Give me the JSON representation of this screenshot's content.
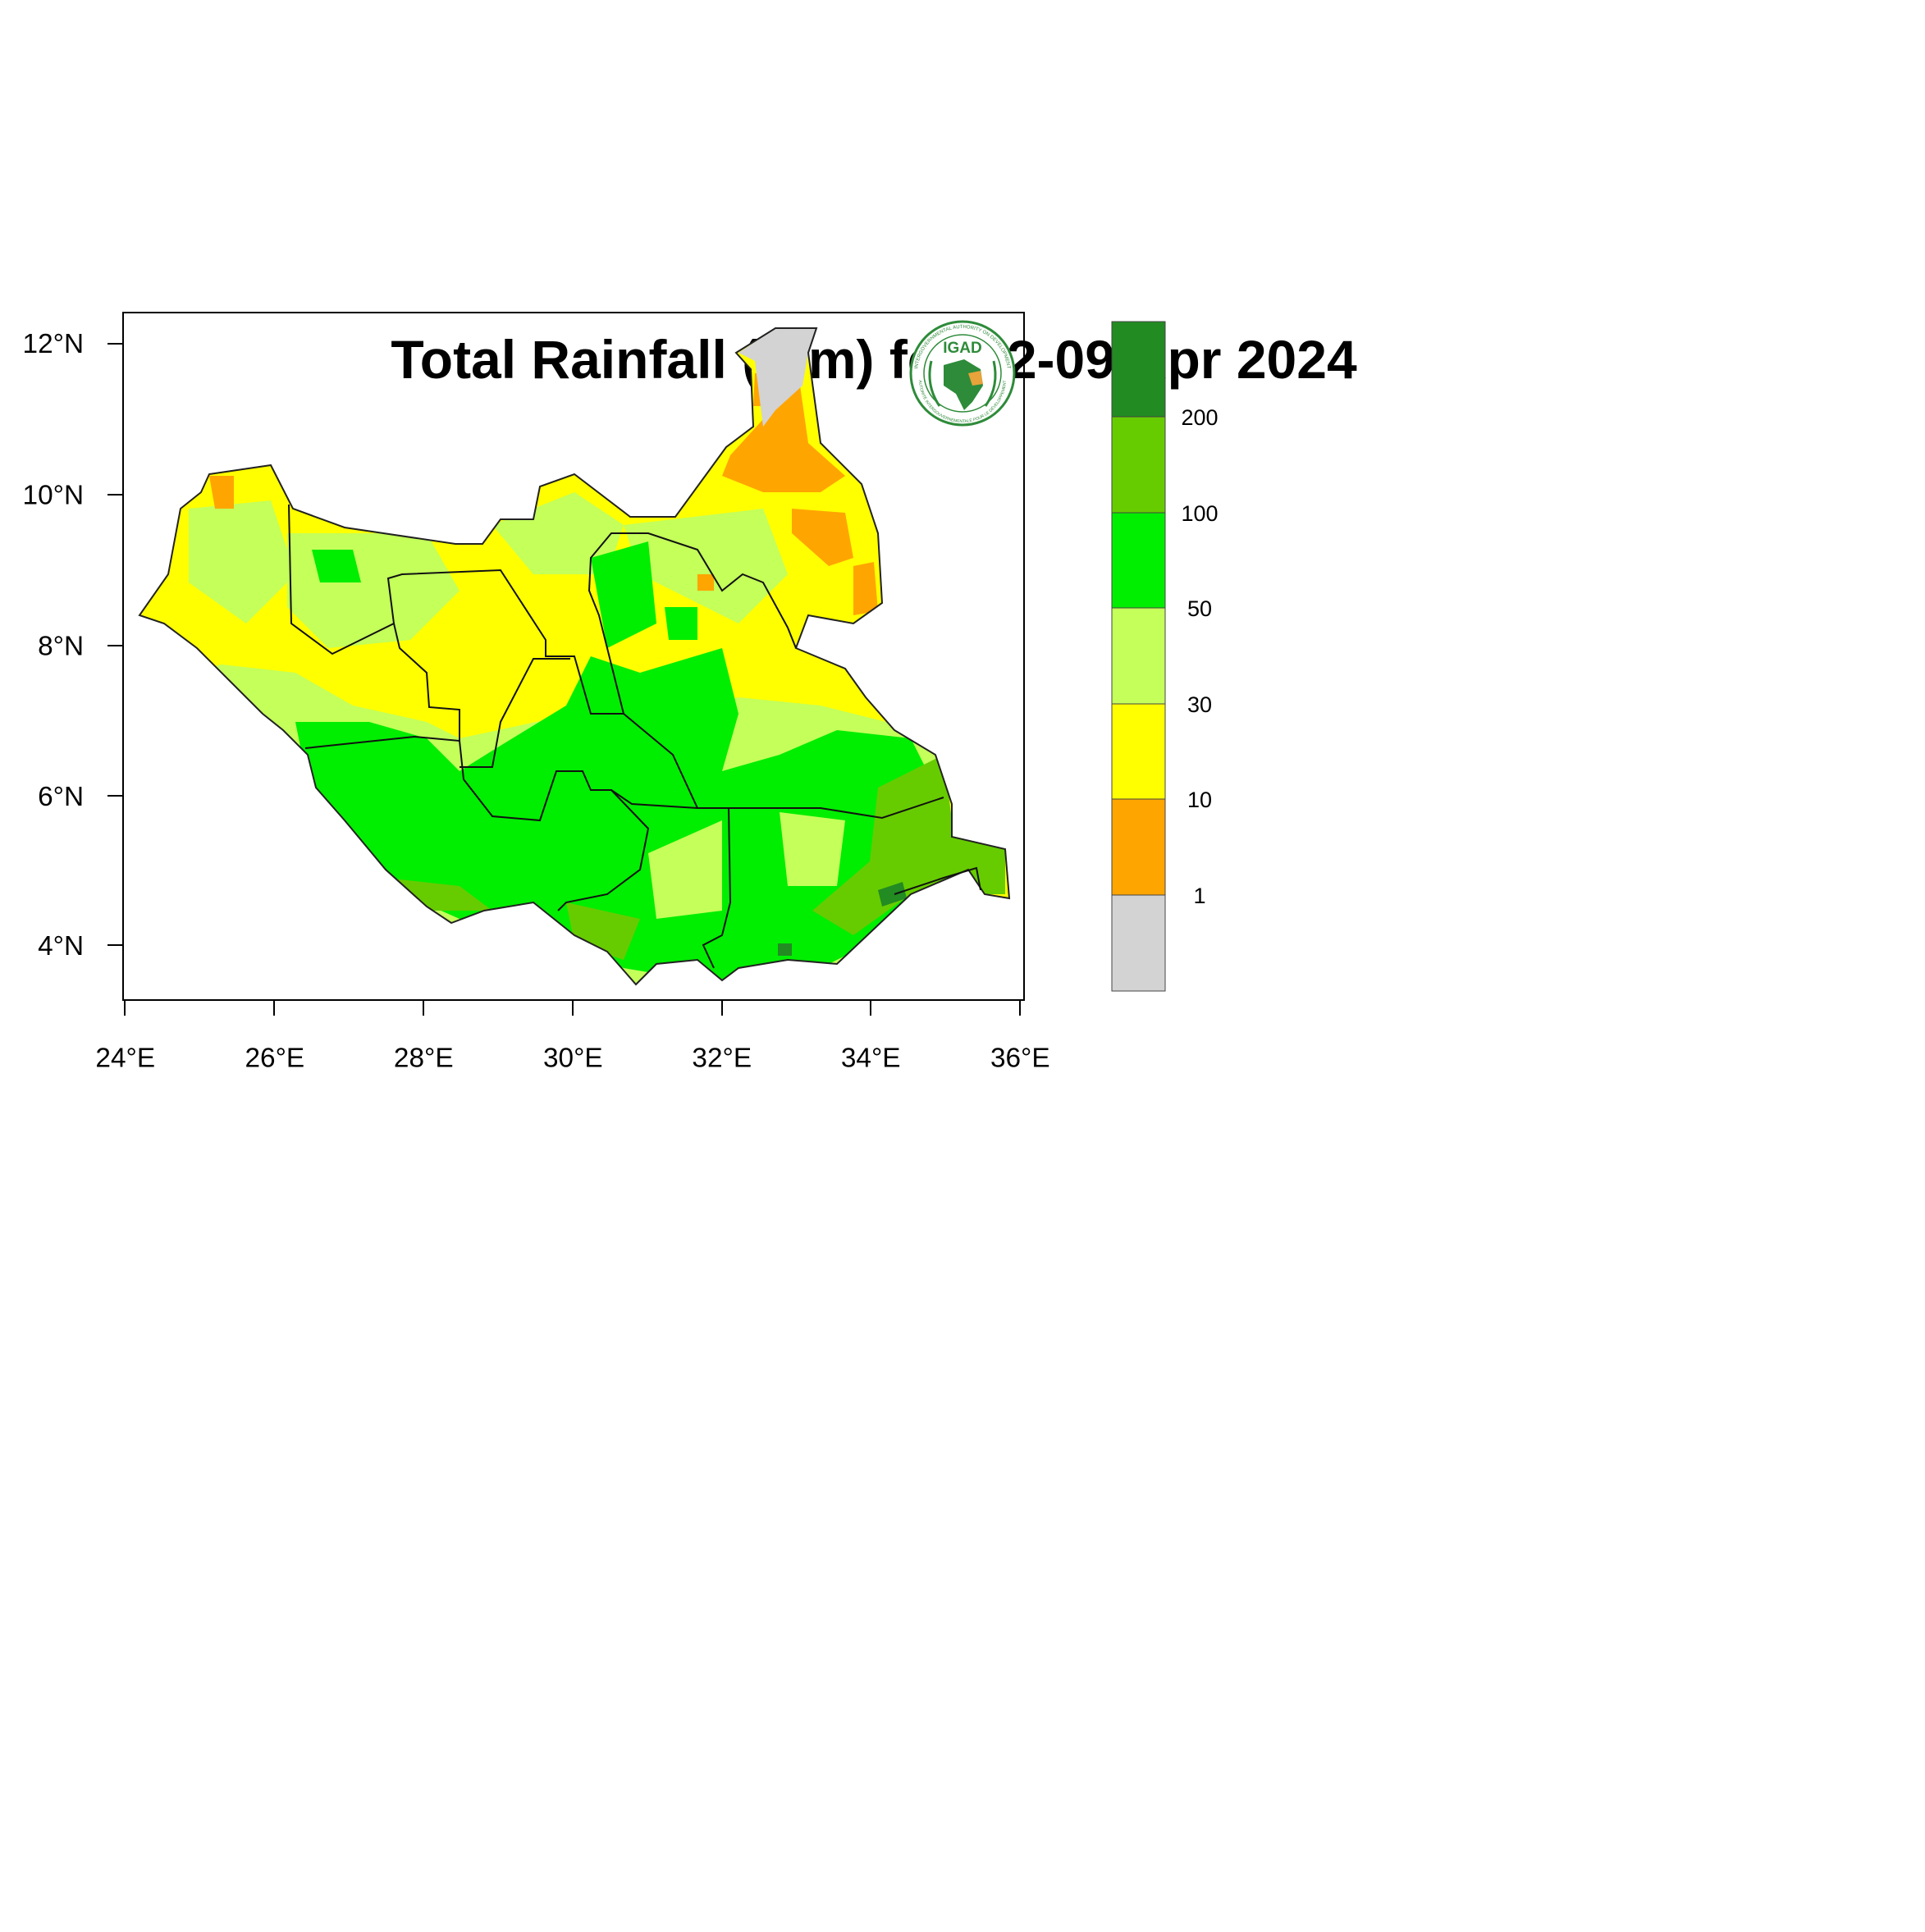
{
  "title": "Total Rainfall (mm) for 02-09 Apr 2024",
  "x_axis": {
    "ticks": [
      "24°E",
      "26°E",
      "28°E",
      "30°E",
      "32°E",
      "34°E",
      "36°E"
    ],
    "range": [
      24,
      36
    ]
  },
  "y_axis": {
    "ticks": [
      "4°N",
      "6°N",
      "8°N",
      "10°N",
      "12°N"
    ],
    "range": [
      3.4,
      12.4
    ]
  },
  "legend": {
    "colors": [
      "#d3d3d3",
      "#ffa500",
      "#ffff00",
      "#c4ff5a",
      "#00ee00",
      "#66cc00",
      "#228b22"
    ],
    "labels": [
      "1",
      "10",
      "30",
      "50",
      "100",
      "200"
    ]
  },
  "logo": {
    "text": "IGAD",
    "ring_text_top": "INTERGOVERNMENTAL AUTHORITY ON DEVELOPMENT",
    "ring_text_bottom": "AUTORITÉ INTERGOUVERNEMENTALE POUR LE DÉVELOPPEMENT"
  }
}
